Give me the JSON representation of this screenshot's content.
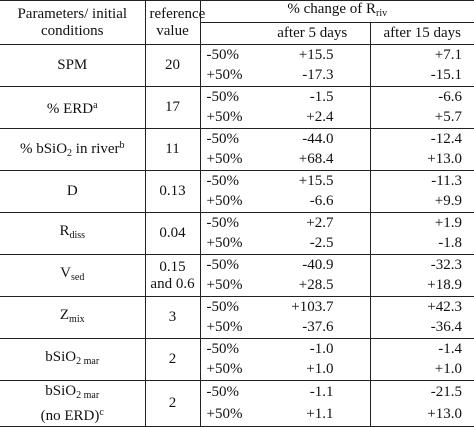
{
  "table": {
    "header": {
      "parameter": "Parameters/ initial conditions",
      "reference": "reference value",
      "change": [
        {
          "text": "% change of R"
        },
        {
          "text": "riv",
          "style": "sub"
        }
      ],
      "after_5": "after 5 days",
      "after_15": "after 15 days"
    },
    "rows": [
      {
        "parameter": [
          {
            "text": "SPM"
          }
        ],
        "reference": "20",
        "changes": [
          {
            "level": "-50%",
            "after_5": "+15.5",
            "after_15": "+7.1"
          },
          {
            "level": "+50%",
            "after_5": "-17.3",
            "after_15": "-15.1"
          }
        ]
      },
      {
        "parameter": [
          {
            "text": "% ERD"
          },
          {
            "text": "a",
            "style": "sup"
          }
        ],
        "reference": "17",
        "changes": [
          {
            "level": "-50%",
            "after_5": "-1.5",
            "after_15": "-6.6"
          },
          {
            "level": "+50%",
            "after_5": "+2.4",
            "after_15": "+5.7"
          }
        ]
      },
      {
        "parameter": [
          {
            "text": "% bSiO"
          },
          {
            "text": "2",
            "style": "sub"
          },
          {
            "text": " in river"
          },
          {
            "text": "b",
            "style": "sup"
          }
        ],
        "reference": "11",
        "changes": [
          {
            "level": "-50%",
            "after_5": "-44.0",
            "after_15": "-12.4"
          },
          {
            "level": "+50%",
            "after_5": "+68.4",
            "after_15": "+13.0"
          }
        ]
      },
      {
        "parameter": [
          {
            "text": "D"
          }
        ],
        "reference": "0.13",
        "changes": [
          {
            "level": "-50%",
            "after_5": "+15.5",
            "after_15": "-11.3"
          },
          {
            "level": "+50%",
            "after_5": "-6.6",
            "after_15": "+9.9"
          }
        ]
      },
      {
        "parameter": [
          {
            "text": "R"
          },
          {
            "text": "diss",
            "style": "sub"
          }
        ],
        "reference": "0.04",
        "changes": [
          {
            "level": "-50%",
            "after_5": "+2.7",
            "after_15": "+1.9"
          },
          {
            "level": "+50%",
            "after_5": "-2.5",
            "after_15": "-1.8"
          }
        ]
      },
      {
        "parameter": [
          {
            "text": "V"
          },
          {
            "text": "sed",
            "style": "sub"
          }
        ],
        "reference": "0.15 and 0.6",
        "changes": [
          {
            "level": "-50%",
            "after_5": "-40.9",
            "after_15": "-32.3"
          },
          {
            "level": "+50%",
            "after_5": "+28.5",
            "after_15": "+18.9"
          }
        ]
      },
      {
        "parameter": [
          {
            "text": "Z"
          },
          {
            "text": "mix",
            "style": "sub"
          }
        ],
        "reference": "3",
        "changes": [
          {
            "level": "-50%",
            "after_5": "+103.7",
            "after_15": "+42.3"
          },
          {
            "level": "+50%",
            "after_5": "-37.6",
            "after_15": "-36.4"
          }
        ]
      },
      {
        "parameter": [
          {
            "text": "bSiO"
          },
          {
            "text": "2 mar",
            "style": "sub"
          }
        ],
        "reference": "2",
        "changes": [
          {
            "level": "-50%",
            "after_5": "-1.0",
            "after_15": "-1.4"
          },
          {
            "level": "+50%",
            "after_5": "+1.0",
            "after_15": "+1.0"
          }
        ]
      },
      {
        "parameter": [
          {
            "text": "bSiO"
          },
          {
            "text": "2 mar",
            "style": "sub"
          },
          {
            "text": "(no ERD)",
            "style": "newline"
          },
          {
            "text": "c",
            "style": "sup"
          }
        ],
        "reference": "2",
        "changes": [
          {
            "level": "-50%",
            "after_5": "-1.1",
            "after_15": "-21.5"
          },
          {
            "level": "+50%",
            "after_5": "+1.1",
            "after_15": "+13.0"
          }
        ]
      }
    ]
  }
}
